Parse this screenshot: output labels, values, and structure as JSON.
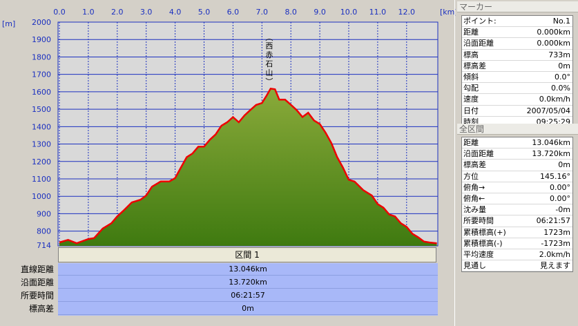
{
  "chart_data": {
    "type": "area",
    "xlabel": "[km]",
    "ylabel": "[m]",
    "xlim": [
      0,
      13.046
    ],
    "ylim": [
      714,
      2000
    ],
    "x_ticks": [
      "0.0",
      "1.0",
      "2.0",
      "3.0",
      "4.0",
      "5.0",
      "6.0",
      "7.0",
      "8.0",
      "9.0",
      "10.0",
      "11.0",
      "12.0"
    ],
    "y_ticks": [
      "2000",
      "1900",
      "1800",
      "1700",
      "1600",
      "1500",
      "1400",
      "1300",
      "1200",
      "1100",
      "1000",
      "900",
      "800",
      "714"
    ],
    "grid": true,
    "annotation": {
      "text": "西赤石山",
      "x": 7.3,
      "y": 1623
    },
    "series": [
      {
        "x": [
          0,
          0.3,
          0.6,
          1.0,
          1.2,
          1.5,
          1.8,
          2.0,
          2.2,
          2.5,
          2.8,
          3.0,
          3.2,
          3.5,
          3.8,
          4.0,
          4.2,
          4.4,
          4.6,
          4.8,
          5.0,
          5.2,
          5.4,
          5.6,
          5.8,
          6.0,
          6.2,
          6.4,
          6.6,
          6.8,
          7.0,
          7.15,
          7.3,
          7.45,
          7.6,
          7.8,
          8.0,
          8.2,
          8.4,
          8.6,
          8.8,
          9.0,
          9.2,
          9.4,
          9.6,
          9.8,
          10.0,
          10.2,
          10.5,
          10.8,
          11.0,
          11.2,
          11.4,
          11.6,
          11.8,
          12.0,
          12.2,
          12.4,
          12.6,
          12.8,
          13.046
        ],
        "y": [
          740,
          745,
          735,
          750,
          765,
          810,
          850,
          880,
          920,
          960,
          985,
          1000,
          1060,
          1080,
          1090,
          1100,
          1170,
          1220,
          1250,
          1280,
          1290,
          1320,
          1360,
          1400,
          1430,
          1450,
          1430,
          1460,
          1500,
          1520,
          1540,
          1570,
          1623,
          1610,
          1560,
          1550,
          1530,
          1490,
          1460,
          1475,
          1440,
          1410,
          1370,
          1300,
          1230,
          1160,
          1100,
          1080,
          1040,
          1000,
          960,
          930,
          900,
          880,
          850,
          820,
          790,
          760,
          745,
          730,
          735
        ]
      }
    ]
  },
  "section": {
    "title": "区間 1",
    "rows": [
      {
        "label": "直線距離",
        "value": "13.046km"
      },
      {
        "label": "沿面距離",
        "value": "13.720km"
      },
      {
        "label": "所要時間",
        "value": "06:21:57"
      },
      {
        "label": "標高差",
        "value": "0m"
      }
    ]
  },
  "marker_panel": {
    "title": "マーカー",
    "rows": [
      {
        "key": "ポイント:",
        "value": "No.1"
      },
      {
        "key": "距離",
        "value": "0.000km"
      },
      {
        "key": "沿面距離",
        "value": "0.000km"
      },
      {
        "key": "標高",
        "value": "733m"
      },
      {
        "key": "標高差",
        "value": "0m"
      },
      {
        "key": "傾斜",
        "value": "0.0°"
      },
      {
        "key": "勾配",
        "value": "0.0%"
      },
      {
        "key": "速度",
        "value": "0.0km/h"
      },
      {
        "key": "日付",
        "value": "2007/05/04"
      },
      {
        "key": "時刻",
        "value": "09:25:29"
      }
    ]
  },
  "total_panel": {
    "title": "全区間",
    "rows": [
      {
        "key": "距離",
        "value": "13.046km"
      },
      {
        "key": "沿面距離",
        "value": "13.720km"
      },
      {
        "key": "標高差",
        "value": "0m"
      },
      {
        "key": "方位",
        "value": "145.16°"
      },
      {
        "key": "俯角→",
        "value": "0.00°"
      },
      {
        "key": "俯角←",
        "value": "0.00°"
      },
      {
        "key": "沈み量",
        "value": "-0m"
      },
      {
        "key": "所要時間",
        "value": "06:21:57"
      },
      {
        "key": "累積標高(+)",
        "value": "1723m"
      },
      {
        "key": "累積標高(-)",
        "value": "-1723m"
      },
      {
        "key": "平均速度",
        "value": "2.0km/h"
      },
      {
        "key": "見通し",
        "value": "見えます"
      }
    ]
  },
  "colors": {
    "fill_top": "#8aaa3a",
    "fill_bottom": "#3f7a10",
    "line": "#ee0000",
    "grid": "#1a2fc0",
    "plot_bg": "#d9d9d9"
  }
}
